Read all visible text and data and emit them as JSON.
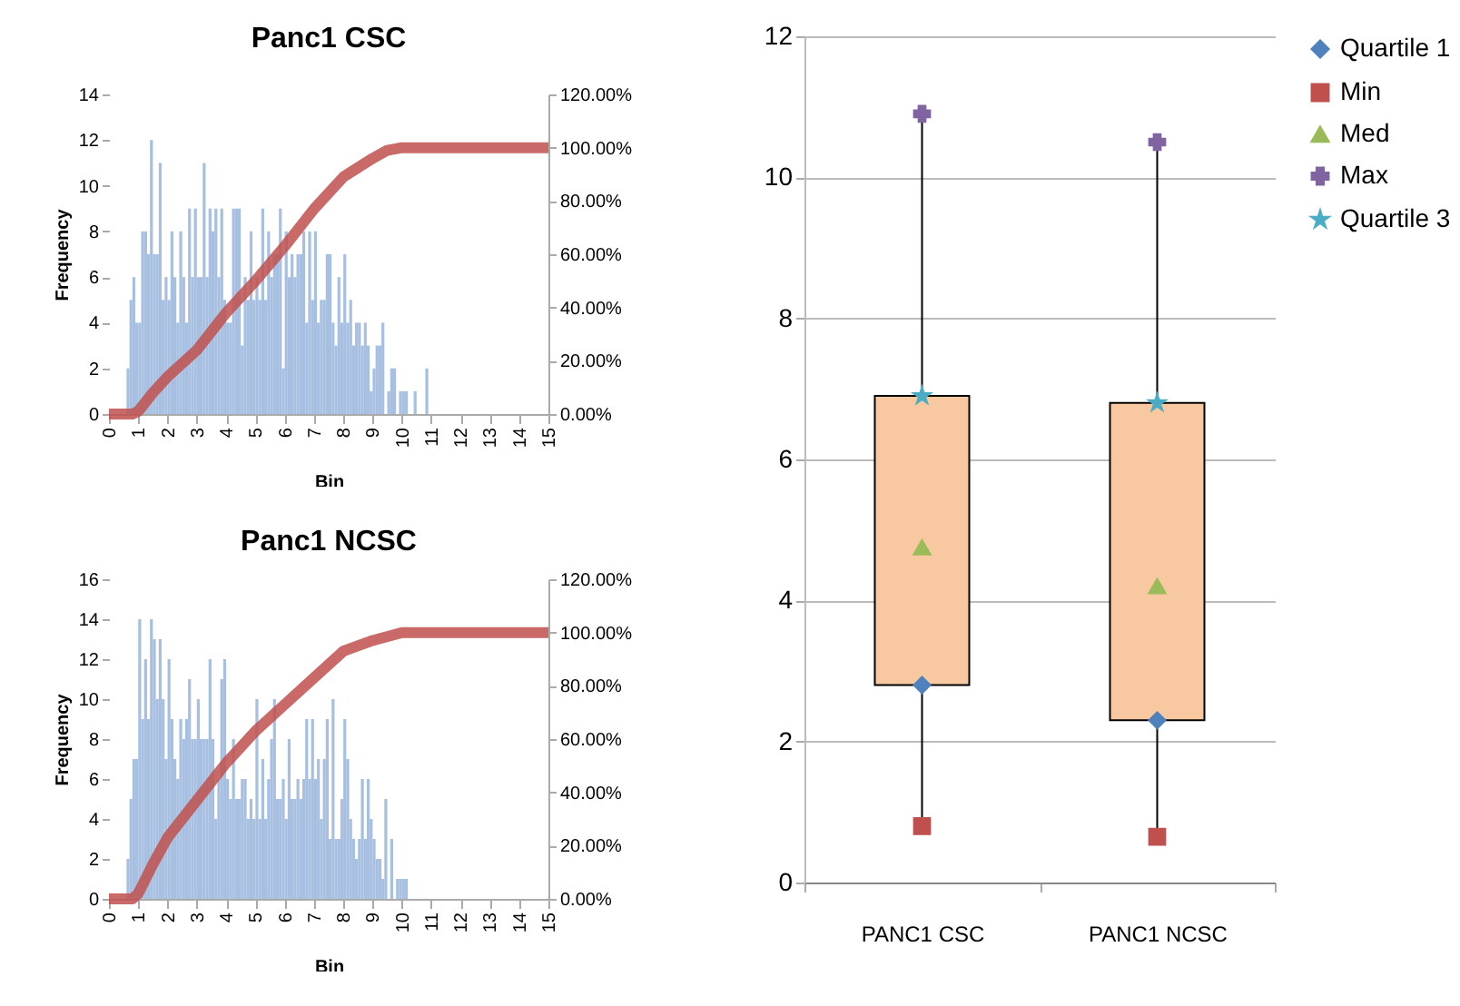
{
  "chart_data": [
    {
      "type": "histogram",
      "title": "Panc1 CSC",
      "xlabel": "Bin",
      "ylabel": "Frequency",
      "color": "#a7bfe0",
      "bins": [
        0,
        0.1,
        0.2,
        0.3,
        0.4,
        0.5,
        0.6,
        0.7,
        0.8,
        0.9,
        1,
        1.1,
        1.2,
        1.3,
        1.4,
        1.5,
        1.6,
        1.7,
        1.8,
        1.9,
        2,
        2.1,
        2.2,
        2.3,
        2.4,
        2.5,
        2.6,
        2.7,
        2.8,
        2.9,
        3,
        3.1,
        3.2,
        3.3,
        3.4,
        3.5,
        3.6,
        3.7,
        3.8,
        3.9,
        4,
        4.1,
        4.2,
        4.3,
        4.4,
        4.5,
        4.6,
        4.7,
        4.8,
        4.9,
        5,
        5.1,
        5.2,
        5.3,
        5.4,
        5.5,
        5.6,
        5.7,
        5.8,
        5.9,
        6,
        6.1,
        6.2,
        6.3,
        6.4,
        6.5,
        6.6,
        6.7,
        6.8,
        6.9,
        7,
        7.1,
        7.2,
        7.3,
        7.4,
        7.5,
        7.6,
        7.7,
        7.8,
        7.9,
        8,
        8.1,
        8.2,
        8.3,
        8.4,
        8.5,
        8.6,
        8.7,
        8.8,
        8.9,
        9,
        9.1,
        9.2,
        9.3,
        9.4,
        9.5,
        9.6,
        9.7,
        9.8,
        9.9,
        10,
        10.1,
        10.2,
        10.3,
        10.4,
        10.5,
        10.6,
        10.7,
        10.8,
        10.9,
        11,
        11.1,
        11.2,
        11.3,
        11.4,
        11.5,
        11.6,
        11.7,
        11.8,
        11.9,
        12,
        12.1,
        12.2,
        12.3,
        12.4,
        12.5,
        12.6,
        12.7,
        12.8,
        12.9,
        13,
        13.1,
        13.2,
        13.3,
        13.4,
        13.5,
        13.6,
        13.7,
        13.8,
        13.9,
        14,
        14.1,
        14.2,
        14.3,
        14.4,
        14.5,
        14.6,
        14.7,
        14.8,
        14.9,
        15
      ],
      "values": [
        0,
        0,
        0,
        0,
        0,
        0,
        2,
        5,
        6,
        4,
        4,
        8,
        8,
        7,
        12,
        7,
        7,
        11,
        5,
        6,
        5,
        8,
        6,
        4,
        8,
        6,
        4,
        9,
        6,
        9,
        6,
        6,
        11,
        6,
        9,
        8,
        9,
        6,
        9,
        5,
        4,
        4,
        9,
        9,
        9,
        3,
        6,
        5,
        8,
        5,
        6,
        5,
        9,
        5,
        8,
        6,
        7,
        7,
        9,
        2,
        8,
        6,
        7,
        6,
        7,
        7,
        8,
        4,
        8,
        5,
        8,
        4,
        5,
        5,
        7,
        7,
        4,
        3,
        6,
        4,
        7,
        4,
        5,
        3,
        4,
        4,
        3,
        4,
        3,
        1,
        2,
        3,
        3,
        4,
        0,
        1,
        2,
        2,
        0,
        1,
        1,
        1,
        0,
        0,
        1,
        0,
        0,
        0,
        2,
        0,
        0,
        0,
        0,
        0,
        0,
        0,
        0,
        0,
        0,
        0,
        0,
        0,
        0,
        0,
        0,
        0,
        0,
        0,
        0,
        0,
        0,
        0,
        0,
        0,
        0,
        0,
        0,
        0,
        0,
        0,
        0,
        0,
        0,
        0,
        0,
        0,
        0,
        0,
        0,
        0
      ],
      "series": [
        {
          "type": "line",
          "axis": "y2",
          "color": "#c0504d",
          "x": [
            0,
            0.8,
            1,
            1.5,
            2,
            3,
            4,
            5,
            6,
            7,
            8,
            9,
            9.5,
            10,
            15
          ],
          "values": [
            0,
            0,
            1,
            8,
            14,
            24,
            38,
            50,
            63,
            77,
            89,
            96,
            99,
            100,
            100
          ]
        }
      ],
      "xlim": [
        0,
        15
      ],
      "xticks": [
        0,
        1,
        2,
        3,
        4,
        5,
        6,
        7,
        8,
        9,
        10,
        11,
        12,
        13,
        14,
        15
      ],
      "ylim": [
        0,
        14
      ],
      "yticks": [
        0,
        2,
        4,
        6,
        8,
        10,
        12,
        14
      ],
      "y2lim": [
        0,
        120
      ],
      "y2ticks": [
        {
          "value": 0,
          "label": "0.00%"
        },
        {
          "value": 20,
          "label": "20.00%"
        },
        {
          "value": 40,
          "label": "40.00%"
        },
        {
          "value": 60,
          "label": "60.00%"
        },
        {
          "value": 80,
          "label": "80.00%"
        },
        {
          "value": 100,
          "label": "100.00%"
        },
        {
          "value": 120,
          "label": "120.00%"
        }
      ],
      "line_style": "solid"
    },
    {
      "type": "histogram",
      "title": "Panc1 NCSC",
      "xlabel": "Bin",
      "ylabel": "Frequency",
      "color": "#a7bfe0",
      "bins": [
        0,
        0.1,
        0.2,
        0.3,
        0.4,
        0.5,
        0.6,
        0.7,
        0.8,
        0.9,
        1,
        1.1,
        1.2,
        1.3,
        1.4,
        1.5,
        1.6,
        1.7,
        1.8,
        1.9,
        2,
        2.1,
        2.2,
        2.3,
        2.4,
        2.5,
        2.6,
        2.7,
        2.8,
        2.9,
        3,
        3.1,
        3.2,
        3.3,
        3.4,
        3.5,
        3.6,
        3.7,
        3.8,
        3.9,
        4,
        4.1,
        4.2,
        4.3,
        4.4,
        4.5,
        4.6,
        4.7,
        4.8,
        4.9,
        5,
        5.1,
        5.2,
        5.3,
        5.4,
        5.5,
        5.6,
        5.7,
        5.8,
        5.9,
        6,
        6.1,
        6.2,
        6.3,
        6.4,
        6.5,
        6.6,
        6.7,
        6.8,
        6.9,
        7,
        7.1,
        7.2,
        7.3,
        7.4,
        7.5,
        7.6,
        7.7,
        7.8,
        7.9,
        8,
        8.1,
        8.2,
        8.3,
        8.4,
        8.5,
        8.6,
        8.7,
        8.8,
        8.9,
        9,
        9.1,
        9.2,
        9.3,
        9.4,
        9.5,
        9.6,
        9.7,
        9.8,
        9.9,
        10,
        10.1,
        10.2,
        10.3,
        10.4,
        10.5,
        10.6,
        10.7,
        10.8,
        10.9,
        11,
        11.1,
        11.2,
        11.3,
        11.4,
        11.5,
        11.6,
        11.7,
        11.8,
        11.9,
        12,
        12.1,
        12.2,
        12.3,
        12.4,
        12.5,
        12.6,
        12.7,
        12.8,
        12.9,
        13,
        13.1,
        13.2,
        13.3,
        13.4,
        13.5,
        13.6,
        13.7,
        13.8,
        13.9,
        14,
        14.1,
        14.2,
        14.3,
        14.4,
        14.5,
        14.6,
        14.7,
        14.8,
        14.9,
        15
      ],
      "values": [
        0,
        0,
        0,
        0,
        0,
        0,
        2,
        5,
        7,
        7,
        14,
        9,
        12,
        9,
        14,
        13,
        10,
        13,
        10,
        7,
        12,
        9,
        7,
        6,
        9,
        8,
        9,
        11,
        8,
        8,
        10,
        8,
        8,
        8,
        12,
        8,
        4,
        6,
        11,
        12,
        6,
        5,
        8,
        5,
        5,
        6,
        6,
        4,
        5,
        4,
        10,
        4,
        7,
        4,
        6,
        8,
        10,
        5,
        5,
        6,
        4,
        8,
        5,
        5,
        6,
        5,
        6,
        9,
        6,
        9,
        6,
        7,
        4,
        7,
        9,
        3,
        10,
        3,
        3,
        5,
        9,
        7,
        4,
        3,
        2,
        3,
        6,
        3,
        6,
        4,
        3,
        2,
        2,
        1,
        5,
        0,
        3,
        0,
        1,
        1,
        1,
        1,
        0,
        0,
        0,
        0,
        0,
        0,
        0,
        0,
        0,
        0,
        0,
        0,
        0,
        0,
        0,
        0,
        0,
        0,
        0,
        0,
        0,
        0,
        0,
        0,
        0,
        0,
        0,
        0,
        0,
        0,
        0,
        0,
        0,
        0,
        0,
        0,
        0,
        0,
        0,
        0,
        0,
        0,
        0,
        0,
        0,
        0,
        0,
        0
      ],
      "series": [
        {
          "type": "line",
          "axis": "y2",
          "color": "#c0504d",
          "x": [
            0,
            0.8,
            1,
            1.5,
            2,
            3,
            4,
            5,
            6,
            7,
            8,
            9,
            10,
            15
          ],
          "values": [
            0,
            0,
            2,
            13,
            23,
            37,
            51,
            63,
            73,
            83,
            93,
            97,
            100,
            100
          ]
        }
      ],
      "xlim": [
        0,
        15
      ],
      "xticks": [
        0,
        1,
        2,
        3,
        4,
        5,
        6,
        7,
        8,
        9,
        10,
        11,
        12,
        13,
        14,
        15
      ],
      "ylim": [
        0,
        16
      ],
      "yticks": [
        0,
        2,
        4,
        6,
        8,
        10,
        12,
        14,
        16
      ],
      "y2lim": [
        0,
        120
      ],
      "y2ticks": [
        {
          "value": 0,
          "label": "0.00%"
        },
        {
          "value": 20,
          "label": "20.00%"
        },
        {
          "value": 40,
          "label": "40.00%"
        },
        {
          "value": 60,
          "label": "60.00%"
        },
        {
          "value": 80,
          "label": "80.00%"
        },
        {
          "value": 100,
          "label": "100.00%"
        },
        {
          "value": 120,
          "label": "120.00%"
        }
      ],
      "line_style": "solid"
    },
    {
      "type": "box",
      "categories": [
        "PANC1 CSC",
        "PANC1 NCSC"
      ],
      "color": "#f8c9a0",
      "boxes": [
        {
          "low": 0.8,
          "q1": 2.8,
          "q3": 6.9,
          "high": 10.9
        },
        {
          "low": 0.65,
          "q1": 2.3,
          "q3": 6.8,
          "high": 10.5
        }
      ],
      "series": [
        {
          "type": "scatter",
          "name": "Quartile 1",
          "color": "#4f81bd",
          "marker": "diamond",
          "x": [
            "PANC1 CSC",
            "PANC1 NCSC"
          ],
          "values": [
            2.8,
            2.3
          ]
        },
        {
          "type": "scatter",
          "name": "Min",
          "color": "#c0504d",
          "marker": "square",
          "x": [
            "PANC1 CSC",
            "PANC1 NCSC"
          ],
          "values": [
            0.8,
            0.65
          ]
        },
        {
          "type": "scatter",
          "name": "Med",
          "color": "#9bbb59",
          "marker": "triangle",
          "x": [
            "PANC1 CSC",
            "PANC1 NCSC"
          ],
          "values": [
            4.75,
            4.2
          ]
        },
        {
          "type": "scatter",
          "name": "Max",
          "color": "#8064a2",
          "marker": "cross",
          "x": [
            "PANC1 CSC",
            "PANC1 NCSC"
          ],
          "values": [
            10.9,
            10.5
          ]
        },
        {
          "type": "scatter",
          "name": "Quartile 3",
          "color": "#4bacc6",
          "marker": "star",
          "x": [
            "PANC1 CSC",
            "PANC1 NCSC"
          ],
          "values": [
            6.9,
            6.8
          ]
        }
      ],
      "ylim": [
        0,
        12
      ],
      "yticks": [
        0,
        2,
        4,
        6,
        8,
        10,
        12
      ],
      "grid": "y",
      "legend": "right"
    }
  ]
}
